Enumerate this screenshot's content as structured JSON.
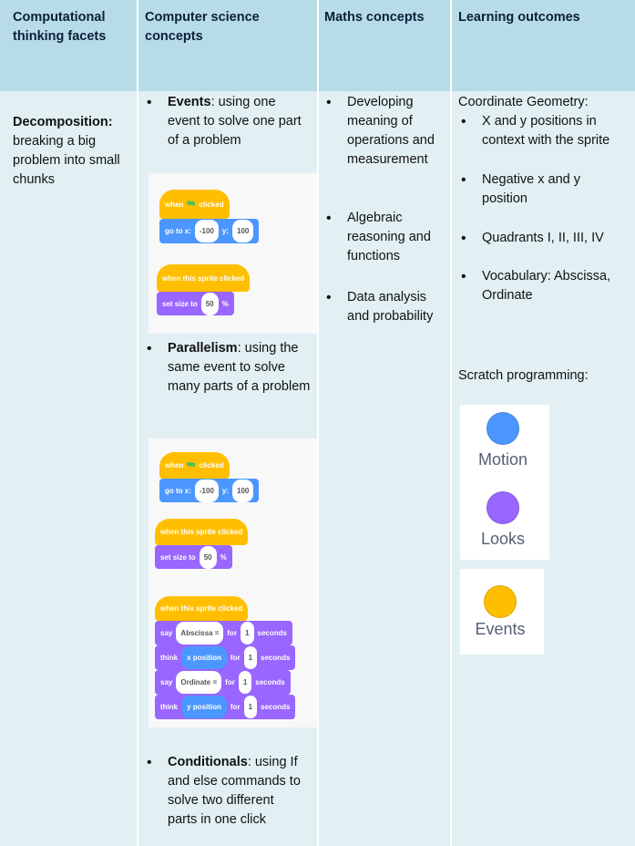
{
  "table": {
    "header": [
      "Computational thinking facets",
      "Computer science concepts",
      "Maths concepts",
      "Learning outcomes"
    ],
    "facet": {
      "term": "Decomposition:",
      "text": "breaking a big problem into small chunks"
    },
    "concepts": [
      {
        "term": "Events",
        "text": ": using one event to solve one part of a problem"
      },
      {
        "term": "Parallelism",
        "text": ": using the same event to solve many parts of a problem"
      },
      {
        "term": "Conditionals",
        "text": ": using If and else commands to solve two different parts in one click"
      }
    ],
    "maths": [
      "Developing meaning of operations and measurement",
      "Algebraic reasoning and functions",
      "Data analysis and probability"
    ],
    "outcomes": {
      "heading": "Coordinate Geometry:",
      "items": [
        "X and y positions in context with the sprite",
        "Negative x and y position",
        "Quadrants I, II, III, IV",
        "Vocabulary: Abscissa, Ordinate"
      ],
      "scratch_heading": "Scratch programming:",
      "categories": [
        {
          "name": "Motion",
          "color": "#4c97ff"
        },
        {
          "name": "Looks",
          "color": "#9966ff"
        },
        {
          "name": "Events",
          "color": "#ffbf00"
        }
      ]
    }
  },
  "scratch_panels": [
    {
      "scripts": [
        {
          "blocks": [
            {
              "hat": true,
              "color": "#ffbf00",
              "parts": [
                {
                  "text": "when"
                },
                {
                  "icon": "green-flag"
                },
                {
                  "text": "clicked"
                }
              ]
            },
            {
              "color": "#4c97ff",
              "parts": [
                {
                  "text": "go to x:"
                },
                {
                  "input": "-100"
                },
                {
                  "text": "y:"
                },
                {
                  "input": "100"
                }
              ]
            }
          ]
        },
        {
          "blocks": [
            {
              "hat": true,
              "color": "#ffbf00",
              "parts": [
                {
                  "text": "when this sprite clicked"
                }
              ]
            },
            {
              "color": "#9966ff",
              "parts": [
                {
                  "text": "set size to"
                },
                {
                  "input": "50"
                },
                {
                  "text": "%"
                }
              ]
            }
          ]
        }
      ]
    },
    {
      "scripts": [
        {
          "blocks": [
            {
              "hat": true,
              "color": "#ffbf00",
              "parts": [
                {
                  "text": "when"
                },
                {
                  "icon": "green-flag"
                },
                {
                  "text": "clicked"
                }
              ]
            },
            {
              "color": "#4c97ff",
              "parts": [
                {
                  "text": "go to x:"
                },
                {
                  "input": "-100"
                },
                {
                  "text": "y:"
                },
                {
                  "input": "100"
                }
              ]
            }
          ]
        },
        {
          "blocks": [
            {
              "hat": true,
              "color": "#ffbf00",
              "parts": [
                {
                  "text": "when this sprite clicked"
                }
              ]
            },
            {
              "color": "#9966ff",
              "parts": [
                {
                  "text": "set size to"
                },
                {
                  "input": "50"
                },
                {
                  "text": "%"
                }
              ]
            }
          ]
        },
        {
          "blocks": [
            {
              "hat": true,
              "color": "#ffbf00",
              "parts": [
                {
                  "text": "when this sprite clicked"
                }
              ]
            },
            {
              "color": "#9966ff",
              "parts": [
                {
                  "text": "say"
                },
                {
                  "input": "Abscissa ="
                },
                {
                  "text": "for"
                },
                {
                  "input": "1"
                },
                {
                  "text": "seconds"
                }
              ]
            },
            {
              "color": "#9966ff",
              "parts": [
                {
                  "text": "think"
                },
                {
                  "reporter": "x position",
                  "color": "#4c97ff"
                },
                {
                  "text": "for"
                },
                {
                  "input": "1"
                },
                {
                  "text": "seconds"
                }
              ]
            },
            {
              "color": "#9966ff",
              "parts": [
                {
                  "text": "say"
                },
                {
                  "input": "Ordinate ="
                },
                {
                  "text": "for"
                },
                {
                  "input": "1"
                },
                {
                  "text": "seconds"
                }
              ]
            },
            {
              "color": "#9966ff",
              "parts": [
                {
                  "text": "think"
                },
                {
                  "reporter": "y position",
                  "color": "#4c97ff"
                },
                {
                  "text": "for"
                },
                {
                  "input": "1"
                },
                {
                  "text": "seconds"
                }
              ]
            }
          ]
        }
      ]
    }
  ]
}
